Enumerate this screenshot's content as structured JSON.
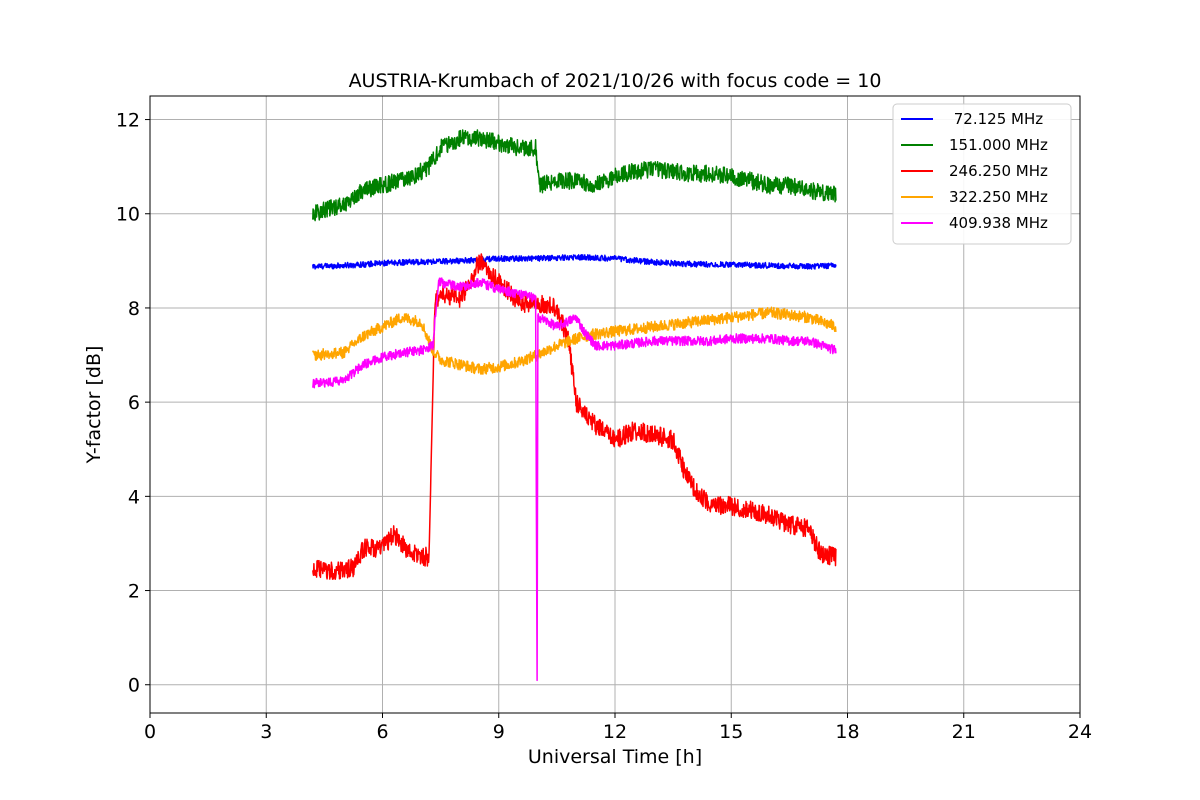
{
  "chart_data": {
    "type": "line",
    "title": "AUSTRIA-Krumbach of 2021/10/26 with focus code = 10",
    "xlabel": "Universal Time [h]",
    "ylabel": "Y-factor [dB]",
    "xlim": [
      0,
      24
    ],
    "ylim": [
      -0.6,
      12.5
    ],
    "xticks": [
      0,
      3,
      6,
      9,
      12,
      15,
      18,
      21,
      24
    ],
    "xtick_labels": [
      "0",
      "3",
      "6",
      "9",
      "12",
      "15",
      "18",
      "21",
      "24"
    ],
    "yticks": [
      0,
      2,
      4,
      6,
      8,
      10,
      12
    ],
    "ytick_labels": [
      "0",
      "2",
      "4",
      "6",
      "8",
      "10",
      "12"
    ],
    "grid": true,
    "legend_position": "top-right",
    "series": [
      {
        "name": " 72.125 MHz",
        "color": "#0000ff",
        "noise": 0.06,
        "x": [
          4.2,
          5,
          6,
          7,
          8,
          9,
          10,
          11,
          12,
          13,
          14,
          15,
          16,
          17,
          17.7
        ],
        "y": [
          8.88,
          8.9,
          8.95,
          8.98,
          9.0,
          9.05,
          9.05,
          9.08,
          9.05,
          8.97,
          8.93,
          8.92,
          8.9,
          8.88,
          8.9
        ]
      },
      {
        "name": "151.000 MHz",
        "color": "#008000",
        "noise": 0.18,
        "x": [
          4.2,
          5,
          5.5,
          6,
          6.8,
          7.2,
          7.5,
          8,
          8.5,
          9,
          9.5,
          9.95,
          10.05,
          10.5,
          11,
          11.5,
          12,
          12.5,
          13,
          13.5,
          14,
          14.5,
          15,
          15.5,
          16,
          16.5,
          17,
          17.7
        ],
        "y": [
          10.0,
          10.2,
          10.5,
          10.6,
          10.8,
          11.0,
          11.4,
          11.6,
          11.6,
          11.5,
          11.4,
          11.4,
          10.6,
          10.7,
          10.7,
          10.6,
          10.8,
          10.9,
          10.95,
          10.9,
          10.85,
          10.85,
          10.8,
          10.7,
          10.6,
          10.6,
          10.5,
          10.4
        ]
      },
      {
        "name": "246.250 MHz",
        "color": "#ff0000",
        "noise": 0.2,
        "x": [
          4.2,
          4.8,
          5.3,
          5.5,
          6,
          6.3,
          6.7,
          7.2,
          7.35,
          7.5,
          8,
          8.3,
          8.5,
          8.8,
          9.2,
          9.5,
          10,
          10.5,
          10.8,
          11.0,
          11.5,
          12,
          12.5,
          13,
          13.5,
          13.8,
          14,
          14.5,
          15,
          15.5,
          16,
          16.5,
          17,
          17.3,
          17.7
        ],
        "y": [
          2.45,
          2.4,
          2.5,
          2.9,
          2.9,
          3.2,
          2.8,
          2.7,
          8.1,
          8.3,
          8.2,
          8.6,
          9.0,
          8.7,
          8.4,
          8.1,
          8.1,
          8.0,
          7.3,
          6.0,
          5.5,
          5.2,
          5.4,
          5.3,
          5.2,
          4.5,
          4.2,
          3.8,
          3.8,
          3.7,
          3.6,
          3.4,
          3.3,
          2.8,
          2.7
        ]
      },
      {
        "name": "322.250 MHz",
        "color": "#ffa500",
        "noise": 0.12,
        "x": [
          4.2,
          5,
          5.5,
          6,
          6.5,
          7,
          7.3,
          7.5,
          8,
          8.5,
          9,
          9.5,
          10,
          10.5,
          11,
          11.5,
          12,
          12.5,
          13,
          13.5,
          14,
          14.5,
          15,
          15.5,
          16,
          16.5,
          17,
          17.7
        ],
        "y": [
          7.0,
          7.05,
          7.4,
          7.6,
          7.8,
          7.7,
          7.1,
          6.9,
          6.8,
          6.7,
          6.75,
          6.85,
          7.0,
          7.2,
          7.35,
          7.45,
          7.5,
          7.55,
          7.6,
          7.65,
          7.7,
          7.75,
          7.8,
          7.85,
          7.9,
          7.85,
          7.8,
          7.6
        ]
      },
      {
        "name": "409.938 MHz",
        "color": "#ff00ff",
        "noise": 0.1,
        "x": [
          4.2,
          5,
          5.5,
          6,
          6.5,
          7,
          7.3,
          7.45,
          8,
          8.5,
          9,
          9.5,
          9.95,
          9.99,
          10.01,
          10.05,
          10.5,
          11,
          11.2,
          11.5,
          12,
          12.5,
          13,
          13.5,
          14,
          14.5,
          15,
          15.5,
          16,
          16.5,
          17,
          17.7
        ],
        "y": [
          6.4,
          6.45,
          6.8,
          6.95,
          7.05,
          7.1,
          7.2,
          8.55,
          8.45,
          8.55,
          8.4,
          8.3,
          8.2,
          0.0,
          7.8,
          7.8,
          7.6,
          7.8,
          7.5,
          7.2,
          7.2,
          7.25,
          7.3,
          7.3,
          7.3,
          7.3,
          7.35,
          7.35,
          7.35,
          7.3,
          7.3,
          7.1
        ]
      }
    ]
  }
}
